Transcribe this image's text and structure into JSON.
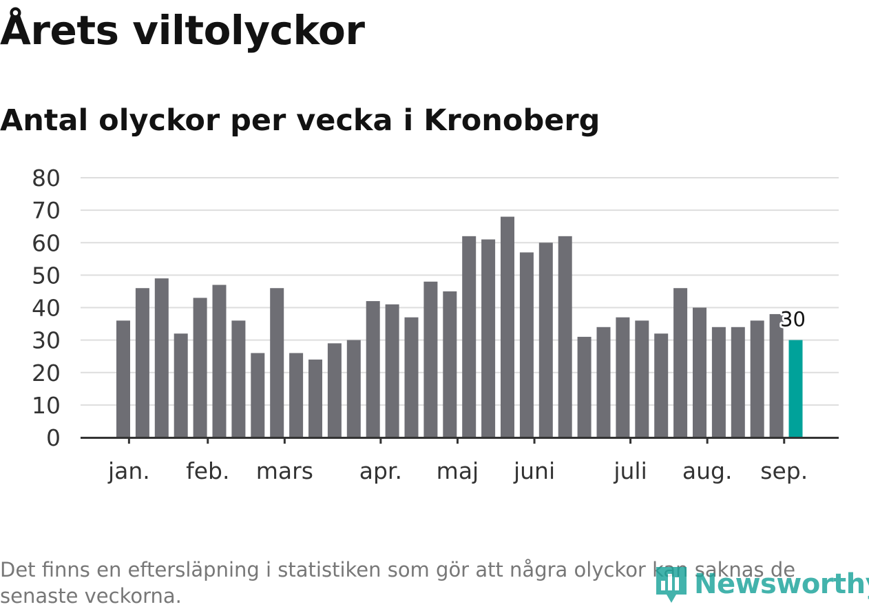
{
  "title": "Årets viltolyckor",
  "subtitle": "Antal olyckor per vecka i Kronoberg",
  "footnote": "Det finns en eftersläpning i statistiken som gör att några olyckor kan saknas de senaste veckorna.",
  "logo": {
    "text": "Newsworthy",
    "icon": "bar-chart-logo-icon",
    "color": "#1aa39a"
  },
  "colors": {
    "bar": "#6e6e74",
    "highlight": "#00a29a",
    "grid": "#dddddd",
    "axis": "#333333"
  },
  "chart_data": {
    "type": "bar",
    "xlabel": "",
    "ylabel": "",
    "ylim": [
      0,
      80
    ],
    "yticks": [
      0,
      10,
      20,
      30,
      40,
      50,
      60,
      70,
      80
    ],
    "grid": true,
    "values": [
      36,
      46,
      49,
      32,
      43,
      47,
      36,
      26,
      46,
      26,
      24,
      29,
      30,
      42,
      41,
      37,
      48,
      45,
      62,
      61,
      68,
      57,
      60,
      62,
      31,
      34,
      37,
      36,
      32,
      46,
      40,
      34,
      34,
      36,
      38,
      30
    ],
    "month_labels": [
      {
        "label": "jan.",
        "week_index": 0.3
      },
      {
        "label": "feb.",
        "week_index": 4.4
      },
      {
        "label": "mars",
        "week_index": 8.4
      },
      {
        "label": "apr.",
        "week_index": 13.4
      },
      {
        "label": "maj",
        "week_index": 17.4
      },
      {
        "label": "juni",
        "week_index": 21.4
      },
      {
        "label": "juli",
        "week_index": 26.4
      },
      {
        "label": "aug.",
        "week_index": 30.4
      },
      {
        "label": "sep.",
        "week_index": 34.4
      }
    ],
    "highlight_index": 35,
    "highlight_label": "30"
  }
}
